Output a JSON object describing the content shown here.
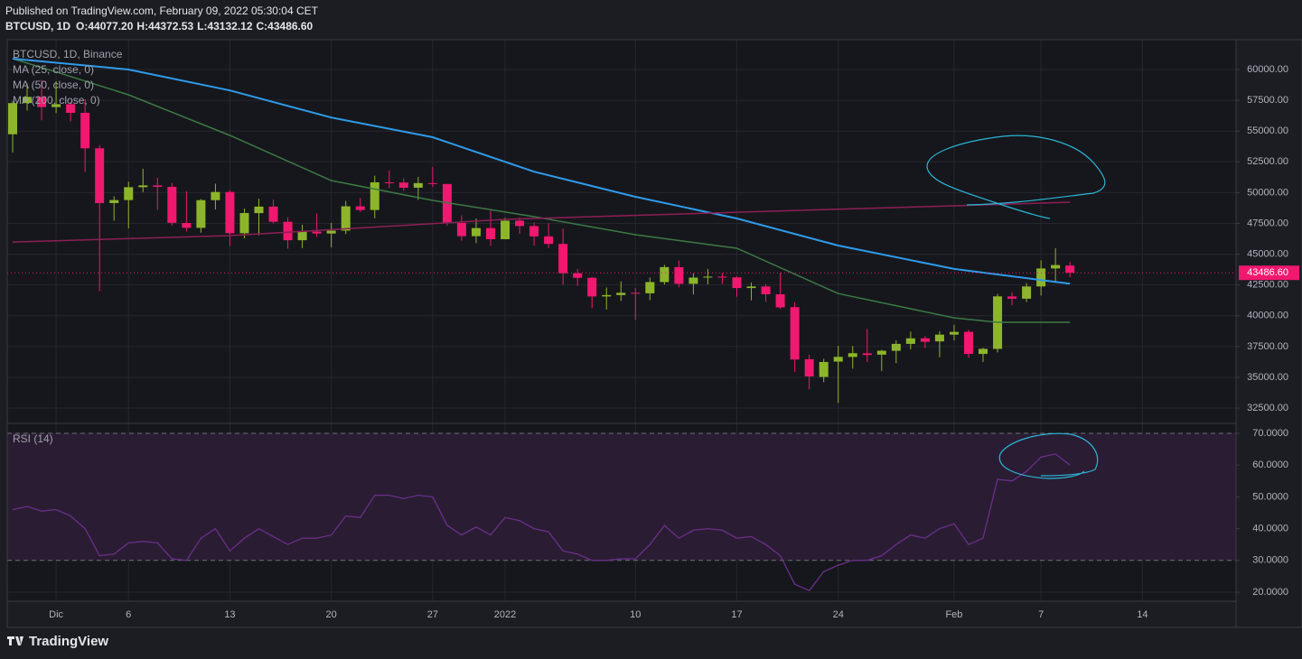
{
  "header": {
    "published": "Published on TradingView.com, February 09, 2022 05:30:04 CET",
    "symbol": "BTCUSD, 1D",
    "ohlc": [
      "O:44077.20",
      "H:44372.53",
      "L:43132.12",
      "C:43486.60"
    ]
  },
  "footer": {
    "logo": "TradingView"
  },
  "chart_data": [
    {
      "type": "candlestick",
      "title": "BTCUSD, 1D, Binance",
      "x": [
        "2021-11-28",
        "2021-11-29",
        "2021-11-30",
        "2021-12-01",
        "2021-12-02",
        "2021-12-03",
        "2021-12-04",
        "2021-12-05",
        "2021-12-06",
        "2021-12-07",
        "2021-12-08",
        "2021-12-09",
        "2021-12-10",
        "2021-12-11",
        "2021-12-12",
        "2021-12-13",
        "2021-12-14",
        "2021-12-15",
        "2021-12-16",
        "2021-12-17",
        "2021-12-18",
        "2021-12-19",
        "2021-12-20",
        "2021-12-21",
        "2021-12-22",
        "2021-12-23",
        "2021-12-24",
        "2021-12-25",
        "2021-12-26",
        "2021-12-27",
        "2021-12-28",
        "2021-12-29",
        "2021-12-30",
        "2021-12-31",
        "2022-01-01",
        "2022-01-02",
        "2022-01-03",
        "2022-01-04",
        "2022-01-05",
        "2022-01-06",
        "2022-01-07",
        "2022-01-08",
        "2022-01-09",
        "2022-01-10",
        "2022-01-11",
        "2022-01-12",
        "2022-01-13",
        "2022-01-14",
        "2022-01-15",
        "2022-01-16",
        "2022-01-17",
        "2022-01-18",
        "2022-01-19",
        "2022-01-20",
        "2022-01-21",
        "2022-01-22",
        "2022-01-23",
        "2022-01-24",
        "2022-01-25",
        "2022-01-26",
        "2022-01-27",
        "2022-01-28",
        "2022-01-29",
        "2022-01-30",
        "2022-01-31",
        "2022-02-01",
        "2022-02-02",
        "2022-02-03",
        "2022-02-04",
        "2022-02-05",
        "2022-02-06",
        "2022-02-07",
        "2022-02-08",
        "2022-02-09"
      ],
      "open": [
        54741,
        57274,
        57776,
        56950,
        57184,
        56484,
        53601,
        49152,
        49396,
        50441,
        50588,
        50471,
        47535,
        47140,
        49389,
        50053,
        46702,
        48336,
        48864,
        47632,
        46134,
        46834,
        46681,
        46914,
        48887,
        48588,
        50838,
        50819,
        50400,
        50775,
        50701,
        47543,
        46464,
        47120,
        46216,
        47722,
        47286,
        46446,
        45832,
        43451,
        43082,
        41566,
        41679,
        41864,
        41822,
        42735,
        43949,
        42592,
        43099,
        43172,
        43118,
        42250,
        42374,
        41744,
        40699,
        36471,
        35030,
        36276,
        36654,
        36950,
        36841,
        37151,
        37716,
        38166,
        37917,
        38466,
        38695,
        36897,
        37306,
        41571,
        41382,
        42380,
        43840,
        44077.2
      ],
      "high": [
        57445,
        58865,
        59176,
        59053,
        57375,
        57600,
        53859,
        49699,
        50891,
        51936,
        51200,
        50797,
        50125,
        49485,
        50724,
        50189,
        48700,
        49500,
        49436,
        47995,
        47392,
        48300,
        47537,
        49328,
        49576,
        51375,
        51810,
        51156,
        51280,
        52088,
        50704,
        48139,
        47900,
        48548,
        47954,
        47990,
        47570,
        47510,
        47070,
        43816,
        43145,
        42300,
        42786,
        42248,
        43100,
        44135,
        44500,
        43447,
        43800,
        43478,
        43200,
        42691,
        42579,
        43505,
        41100,
        36835,
        36499,
        37550,
        37545,
        38919,
        37234,
        38000,
        38720,
        38359,
        38744,
        39265,
        38855,
        37387,
        41772,
        41913,
        42656,
        44500,
        45492,
        44372.53
      ],
      "low": [
        53256,
        56665,
        55875,
        56458,
        55777,
        51680,
        42000,
        47727,
        47100,
        50039,
        48600,
        47320,
        46852,
        46751,
        48638,
        45672,
        46290,
        46547,
        47511,
        45456,
        45500,
        46406,
        45558,
        46630,
        48421,
        47920,
        50384,
        50142,
        49412,
        50449,
        47313,
        46096,
        45900,
        45678,
        46208,
        46654,
        45696,
        45500,
        42500,
        42430,
        40611,
        40501,
        41200,
        39650,
        41268,
        42528,
        42311,
        41725,
        42555,
        42581,
        41540,
        41250,
        41138,
        40553,
        35440,
        34008,
        34601,
        32917,
        35701,
        36234,
        35507,
        36150,
        37268,
        37351,
        36632,
        38000,
        36586,
        36250,
        37026,
        40843,
        41116,
        41645,
        42666,
        43132.12
      ],
      "close": [
        57274,
        57776,
        56950,
        57184,
        56480,
        53601,
        49152,
        49396,
        50441,
        50588,
        50471,
        47545,
        47140,
        49389,
        50053,
        46702,
        48343,
        48864,
        47632,
        46131,
        46834,
        46681,
        46914,
        48889,
        48588,
        50838,
        50820,
        50400,
        50775,
        50701,
        47543,
        46464,
        47120,
        46216,
        47722,
        47286,
        46446,
        45832,
        43451,
        43082,
        41566,
        41679,
        41864,
        41822,
        42735,
        43949,
        42591,
        43099,
        43177,
        43113,
        42250,
        42375,
        41744,
        40680,
        36445,
        35071,
        36244,
        36660,
        36958,
        36810,
        37160,
        37716,
        38166,
        37881,
        38466,
        38691,
        36896,
        37311,
        41574,
        41382,
        42380,
        43840,
        44118,
        43486.6
      ],
      "up_color": "#8db52b",
      "down_color": "#f0186f",
      "series": [
        {
          "name": "MA (25, close, 0)",
          "color": "#3c7a45",
          "x": [
            "2021-11-28",
            "2021-12-01",
            "2021-12-06",
            "2021-12-13",
            "2021-12-20",
            "2021-12-27",
            "2022-01-03",
            "2022-01-10",
            "2022-01-17",
            "2022-01-24",
            "2022-02-01",
            "2022-02-04",
            "2022-02-09"
          ],
          "values": [
            60880,
            59800,
            57950,
            54650,
            50980,
            49370,
            48050,
            46580,
            45480,
            41800,
            39830,
            39470,
            39470
          ]
        },
        {
          "name": "MA (50, close, 0)",
          "color": "#2f9bea",
          "x": [
            "2021-11-28",
            "2021-12-06",
            "2021-12-13",
            "2021-12-20",
            "2021-12-27",
            "2022-01-03",
            "2022-01-10",
            "2022-01-17",
            "2022-01-24",
            "2022-02-01",
            "2022-02-07",
            "2022-02-09"
          ],
          "values": [
            60880,
            60000,
            58300,
            56100,
            54500,
            51700,
            49660,
            47900,
            45700,
            43800,
            42900,
            42600
          ]
        },
        {
          "name": "MA (200, close, 0)",
          "color": "#8c1f56",
          "x": [
            "2021-11-28",
            "2021-12-13",
            "2022-01-01",
            "2022-01-17",
            "2022-02-01",
            "2022-02-09"
          ],
          "values": [
            45990,
            46510,
            47830,
            48410,
            48930,
            49220
          ]
        }
      ],
      "last_price": {
        "value": 43486.6,
        "label": "43486.60",
        "color": "#f0186f"
      },
      "ylim": [
        31330,
        62420
      ],
      "yticks": [
        {
          "value": 32500,
          "label": "32500.00"
        },
        {
          "value": 35000,
          "label": "35000.00"
        },
        {
          "value": 37500,
          "label": "37500.00"
        },
        {
          "value": 40000,
          "label": "40000.00"
        },
        {
          "value": 42500,
          "label": "42500.00"
        },
        {
          "value": 45000,
          "label": "45000.00"
        },
        {
          "value": 47500,
          "label": "47500.00"
        },
        {
          "value": 50000,
          "label": "50000.00"
        },
        {
          "value": 52500,
          "label": "52500.00"
        },
        {
          "value": 55000,
          "label": "55000.00"
        },
        {
          "value": 57500,
          "label": "57500.00"
        },
        {
          "value": 60000,
          "label": "60000.00"
        }
      ],
      "xticks": [
        {
          "value": "2021-12-01",
          "label": "Dic"
        },
        {
          "value": "2021-12-06",
          "label": "6"
        },
        {
          "value": "2021-12-13",
          "label": "13"
        },
        {
          "value": "2021-12-20",
          "label": "20"
        },
        {
          "value": "2021-12-27",
          "label": "27"
        },
        {
          "value": "2022-01-01",
          "label": "2022"
        },
        {
          "value": "2022-01-10",
          "label": "10"
        },
        {
          "value": "2022-01-17",
          "label": "17"
        },
        {
          "value": "2022-01-24",
          "label": "24"
        },
        {
          "value": "2022-02-01",
          "label": "Feb"
        },
        {
          "value": "2022-02-07",
          "label": "7"
        },
        {
          "value": "2022-02-14",
          "label": "14"
        }
      ],
      "grid": true
    },
    {
      "type": "line",
      "title": "RSI (14)",
      "x": [
        "2021-11-28",
        "2021-11-29",
        "2021-11-30",
        "2021-12-01",
        "2021-12-02",
        "2021-12-03",
        "2021-12-04",
        "2021-12-05",
        "2021-12-06",
        "2021-12-07",
        "2021-12-08",
        "2021-12-09",
        "2021-12-10",
        "2021-12-11",
        "2021-12-12",
        "2021-12-13",
        "2021-12-14",
        "2021-12-15",
        "2021-12-16",
        "2021-12-17",
        "2021-12-18",
        "2021-12-19",
        "2021-12-20",
        "2021-12-21",
        "2021-12-22",
        "2021-12-23",
        "2021-12-24",
        "2021-12-25",
        "2021-12-26",
        "2021-12-27",
        "2021-12-28",
        "2021-12-29",
        "2021-12-30",
        "2021-12-31",
        "2022-01-01",
        "2022-01-02",
        "2022-01-03",
        "2022-01-04",
        "2022-01-05",
        "2022-01-06",
        "2022-01-07",
        "2022-01-08",
        "2022-01-09",
        "2022-01-10",
        "2022-01-11",
        "2022-01-12",
        "2022-01-13",
        "2022-01-14",
        "2022-01-15",
        "2022-01-16",
        "2022-01-17",
        "2022-01-18",
        "2022-01-19",
        "2022-01-20",
        "2022-01-21",
        "2022-01-22",
        "2022-01-23",
        "2022-01-24",
        "2022-01-25",
        "2022-01-26",
        "2022-01-27",
        "2022-01-28",
        "2022-01-29",
        "2022-01-30",
        "2022-01-31",
        "2022-02-01",
        "2022-02-02",
        "2022-02-03",
        "2022-02-04",
        "2022-02-05",
        "2022-02-06",
        "2022-02-07",
        "2022-02-08",
        "2022-02-09"
      ],
      "values": [
        46,
        47,
        45.5,
        46,
        44,
        40,
        31.5,
        32,
        35.5,
        36,
        35.5,
        30.5,
        30,
        37,
        40,
        33,
        37,
        40,
        37.5,
        35,
        37,
        37,
        38,
        44,
        43.5,
        50.5,
        50.5,
        49.5,
        50.5,
        50,
        41,
        38,
        40.5,
        38,
        43.5,
        42.5,
        40,
        39,
        33,
        32,
        30,
        30,
        30.5,
        30.5,
        35,
        41,
        37,
        39.5,
        40,
        39.5,
        37,
        37.5,
        35,
        31.5,
        22.5,
        20.5,
        26.5,
        28.5,
        30,
        30,
        31.5,
        35,
        38,
        37,
        40,
        41.5,
        35,
        37,
        55.5,
        55,
        58,
        62.5,
        63.5,
        60
      ],
      "color": "#6a2f8a",
      "band_color": "#2a1d33",
      "bands": [
        30,
        70
      ],
      "ylim": [
        17.16,
        72.84
      ],
      "yticks": [
        {
          "value": 20,
          "label": "20.0000"
        },
        {
          "value": 30,
          "label": "30.0000"
        },
        {
          "value": 40,
          "label": "40.0000"
        },
        {
          "value": 50,
          "label": "50.0000"
        },
        {
          "value": 60,
          "label": "60.0000"
        },
        {
          "value": 70,
          "label": "70.0000"
        }
      ],
      "grid": true
    }
  ]
}
